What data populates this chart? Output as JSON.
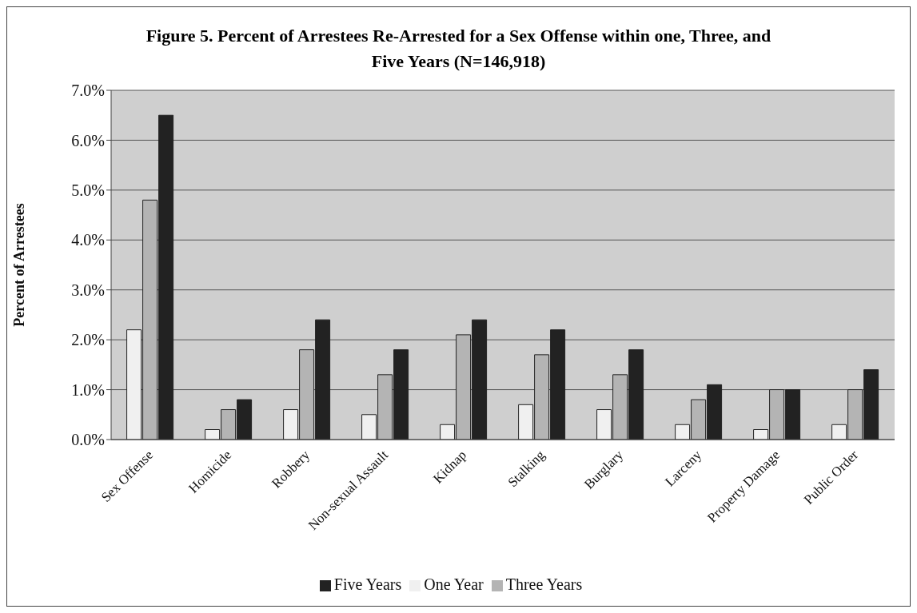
{
  "chart_data": {
    "type": "bar",
    "title": "Figure 5.  Percent of Arrestees Re-Arrested for a Sex Offense within one, Three, and Five Years (N=146,918)",
    "ylabel": "Percent of Arrestees",
    "categories": [
      "Sex Offense",
      "Homicide",
      "Robbery",
      "Non-sexual Assault",
      "Kidnap",
      "Stalking",
      "Burglary",
      "Larceny",
      "Property Damage",
      "Public Order"
    ],
    "series": [
      {
        "name": "One Year",
        "color": "#f0f0f0",
        "values": [
          2.2,
          0.2,
          0.6,
          0.5,
          0.3,
          0.7,
          0.6,
          0.3,
          0.2,
          0.3
        ]
      },
      {
        "name": "Three Years",
        "color": "#b4b4b4",
        "values": [
          4.8,
          0.6,
          1.8,
          1.3,
          2.1,
          1.7,
          1.3,
          0.8,
          1.0,
          1.0
        ]
      },
      {
        "name": "Five Years",
        "color": "#222222",
        "values": [
          6.5,
          0.8,
          2.4,
          1.8,
          2.4,
          2.2,
          1.8,
          1.1,
          1.0,
          1.4
        ]
      }
    ],
    "ylim": [
      0,
      7
    ],
    "yticks": [
      {
        "value": 0,
        "label": "0.0%"
      },
      {
        "value": 1,
        "label": "1.0%"
      },
      {
        "value": 2,
        "label": "2.0%"
      },
      {
        "value": 3,
        "label": "3.0%"
      },
      {
        "value": 4,
        "label": "4.0%"
      },
      {
        "value": 5,
        "label": "5.0%"
      },
      {
        "value": 6,
        "label": "6.0%"
      },
      {
        "value": 7,
        "label": "7.0%"
      }
    ],
    "grid": "y",
    "legend": "bottom"
  }
}
